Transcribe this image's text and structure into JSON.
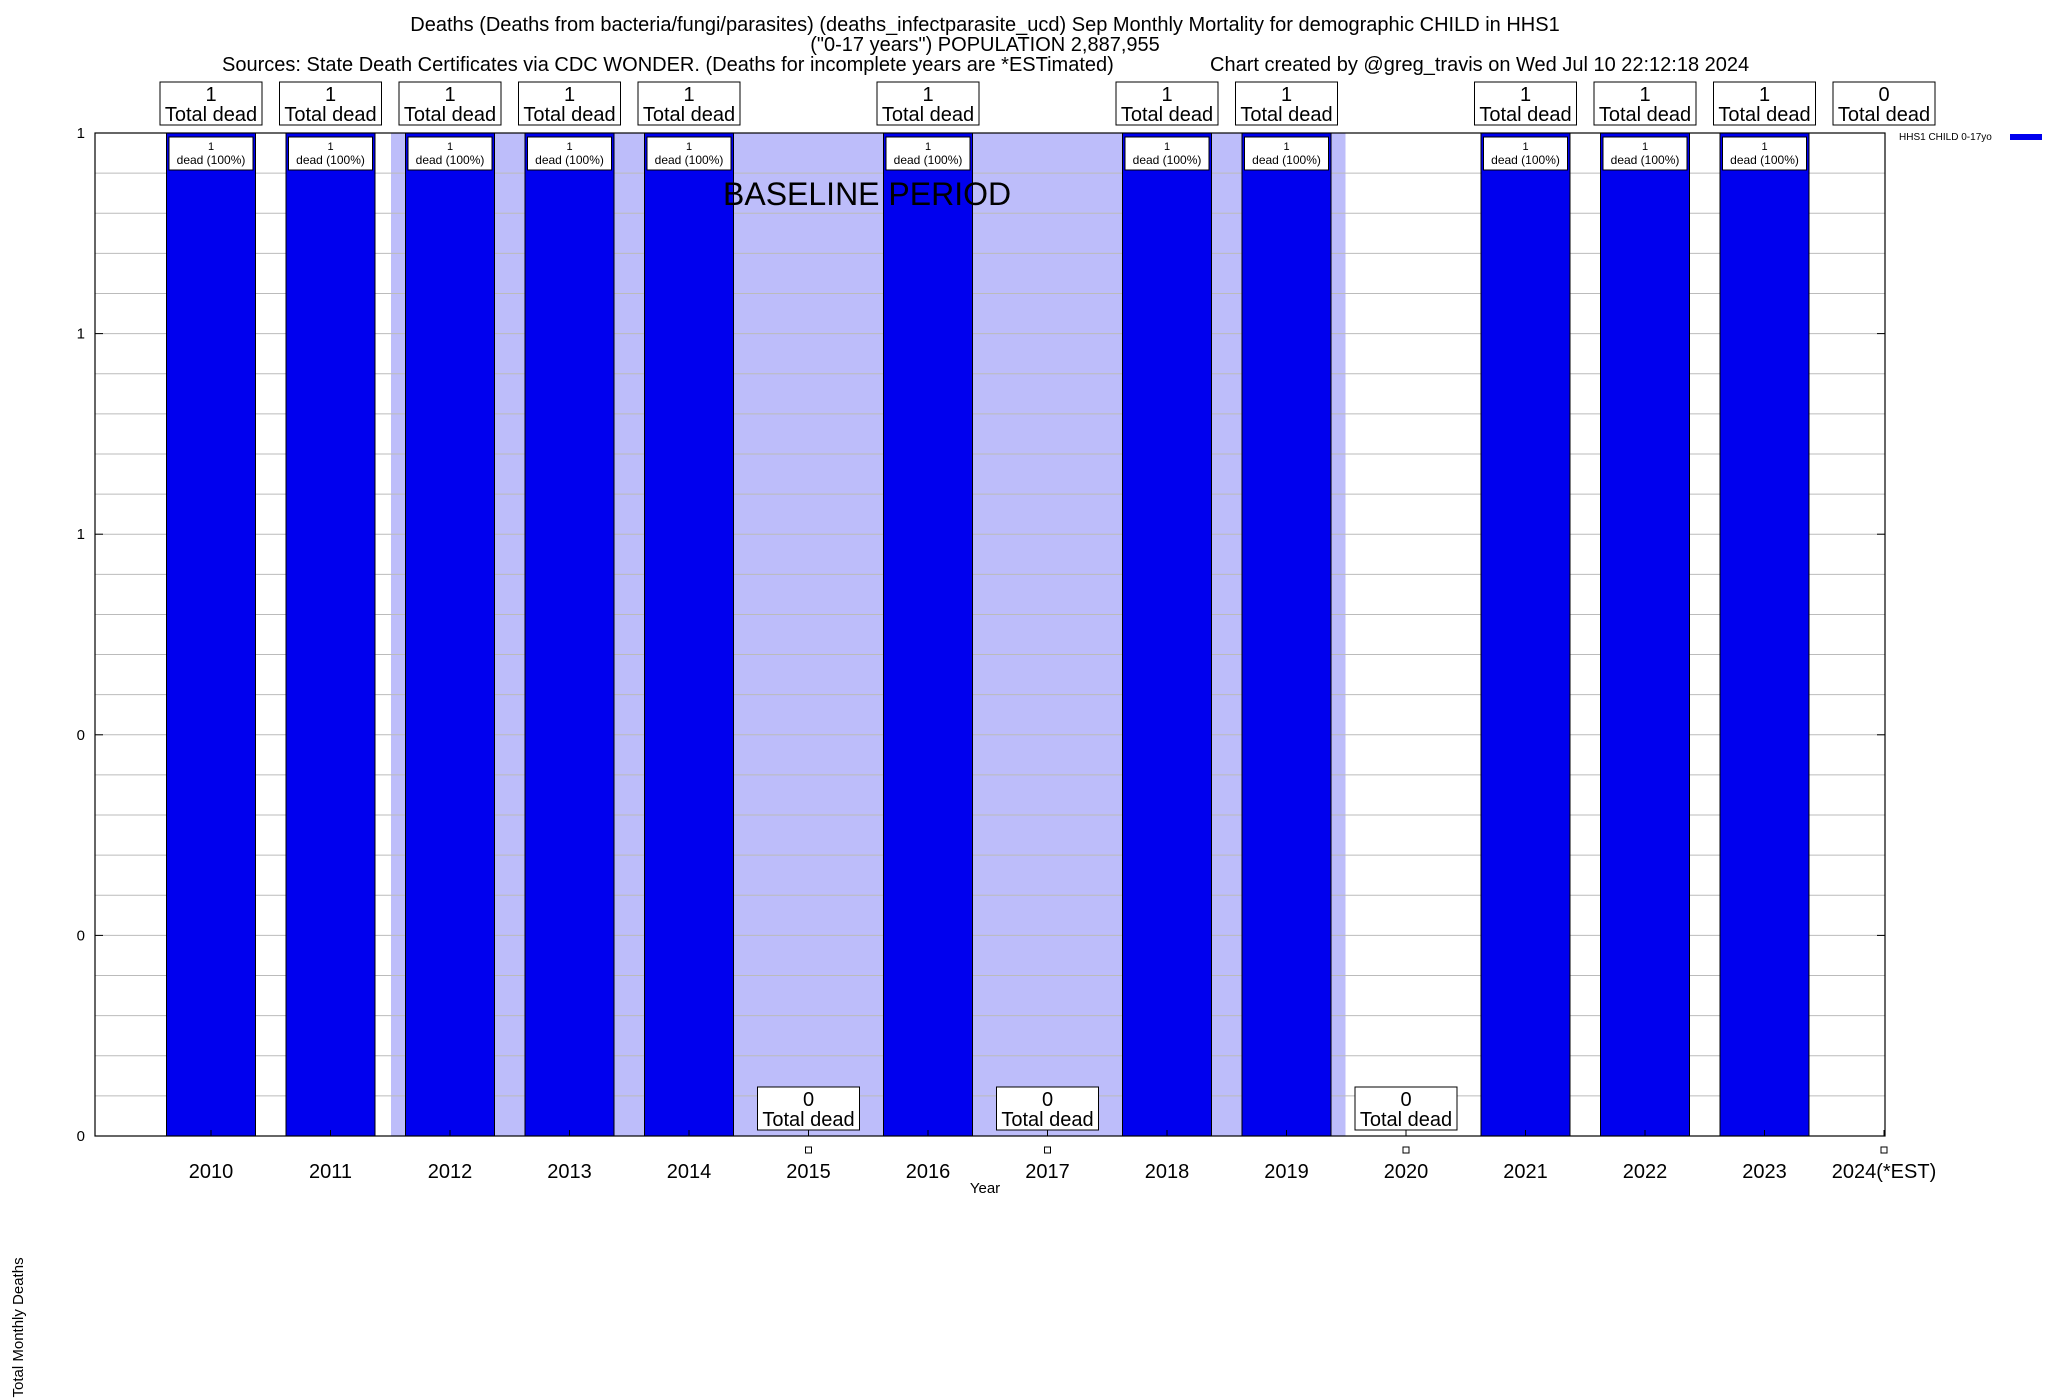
{
  "title": {
    "line1": "Deaths (Deaths from bacteria/fungi/parasites) (deaths_infectparasite_ucd) Sep Monthly Mortality for demographic CHILD in HHS1",
    "line2": "(\"0-17 years\") POPULATION 2,887,955",
    "line3": "Sources: State Death Certificates via CDC WONDER. (Deaths for incomplete years are *ESTimated)",
    "line4": "Chart created by @greg_travis on Wed Jul 10 22:12:18 2024"
  },
  "colors": {
    "bar": "#0000ee",
    "baseline_shade": "#bdbdfa",
    "grid": "#bbbbbb"
  },
  "chart_data": {
    "type": "bar",
    "title": "Deaths (Deaths from bacteria/fungi/parasites) (deaths_infectparasite_ucd) Sep Monthly Mortality for demographic CHILD in HHS1",
    "xlabel": "Year",
    "ylabel": "Total Monthly Deaths",
    "ylim": [
      0,
      1
    ],
    "y_tick_labels": [
      "0",
      "0",
      "0",
      "1",
      "1",
      "1"
    ],
    "grid": true,
    "legend_position": "top-right",
    "categories": [
      "2010",
      "2011",
      "2012",
      "2013",
      "2014",
      "2015",
      "2016",
      "2017",
      "2018",
      "2019",
      "2020",
      "2021",
      "2022",
      "2023",
      "2024(*EST)"
    ],
    "series": [
      {
        "name": "HHS1 CHILD 0-17yo",
        "values": [
          1,
          1,
          1,
          1,
          1,
          0,
          1,
          0,
          1,
          1,
          0,
          1,
          1,
          1,
          0
        ]
      }
    ],
    "top_labels": [
      {
        "value": "1",
        "text": "Total dead"
      },
      {
        "value": "1",
        "text": "Total dead"
      },
      {
        "value": "1",
        "text": "Total dead"
      },
      {
        "value": "1",
        "text": "Total dead"
      },
      {
        "value": "1",
        "text": "Total dead"
      },
      {
        "value": "0",
        "text": "Total dead"
      },
      {
        "value": "1",
        "text": "Total dead"
      },
      {
        "value": "0",
        "text": "Total dead"
      },
      {
        "value": "1",
        "text": "Total dead"
      },
      {
        "value": "1",
        "text": "Total dead"
      },
      {
        "value": "0",
        "text": "Total dead"
      },
      {
        "value": "1",
        "text": "Total dead"
      },
      {
        "value": "1",
        "text": "Total dead"
      },
      {
        "value": "1",
        "text": "Total dead"
      },
      {
        "value": "0",
        "text": "Total dead"
      }
    ],
    "bar_labels": [
      "dead (100%)",
      "dead (100%)",
      "dead (100%)",
      "dead (100%)",
      "dead (100%)",
      "",
      "dead (100%)",
      "",
      "dead (100%)",
      "dead (100%)",
      "",
      "dead (100%)",
      "dead (100%)",
      "dead (100%)",
      ""
    ],
    "annotation": "BASELINE PERIOD",
    "baseline_range": [
      "2012",
      "2019"
    ]
  }
}
